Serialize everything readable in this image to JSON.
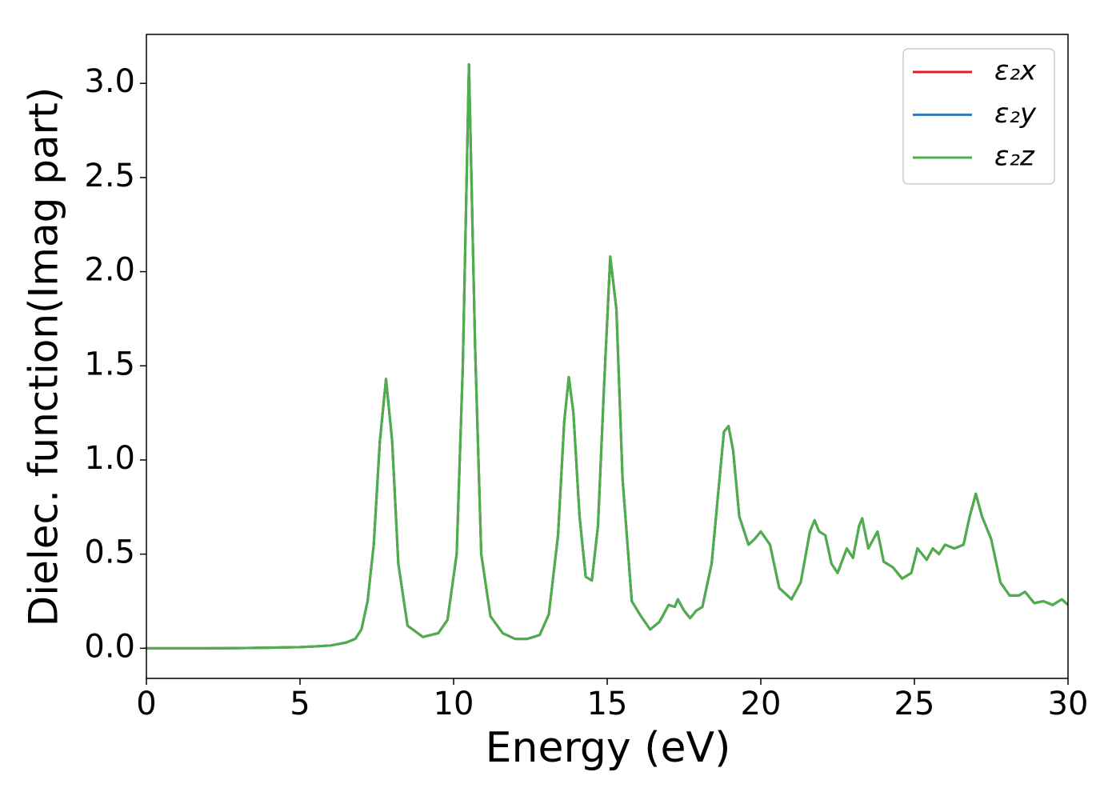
{
  "chart_data": {
    "type": "line",
    "xlabel": "Energy (eV)",
    "ylabel": "Dielec. function(Imag part)",
    "x": [
      0,
      1,
      2,
      3,
      4,
      5,
      5.5,
      6,
      6.5,
      6.8,
      7,
      7.2,
      7.4,
      7.6,
      7.8,
      8.0,
      8.2,
      8.5,
      9,
      9.5,
      9.8,
      10.1,
      10.3,
      10.5,
      10.7,
      10.9,
      11.2,
      11.6,
      12,
      12.4,
      12.8,
      13.1,
      13.4,
      13.6,
      13.75,
      13.9,
      14.1,
      14.3,
      14.5,
      14.7,
      14.9,
      15.1,
      15.3,
      15.5,
      15.8,
      16.1,
      16.4,
      16.7,
      17,
      17.2,
      17.3,
      17.5,
      17.7,
      17.9,
      18.1,
      18.4,
      18.6,
      18.8,
      18.95,
      19.1,
      19.3,
      19.6,
      19.8,
      20,
      20.3,
      20.6,
      21,
      21.3,
      21.6,
      21.75,
      21.9,
      22.1,
      22.3,
      22.5,
      22.8,
      23,
      23.2,
      23.3,
      23.5,
      23.8,
      24,
      24.3,
      24.6,
      24.9,
      25.1,
      25.4,
      25.6,
      25.8,
      26,
      26.3,
      26.6,
      26.8,
      27,
      27.2,
      27.5,
      27.8,
      28.1,
      28.4,
      28.6,
      28.9,
      29.2,
      29.5,
      29.8,
      30
    ],
    "series": [
      {
        "name": "ε₂x",
        "color": "#e41a1c",
        "values": [
          0,
          0,
          0,
          0.001,
          0.003,
          0.006,
          0.01,
          0.015,
          0.03,
          0.05,
          0.1,
          0.25,
          0.55,
          1.1,
          1.43,
          1.1,
          0.45,
          0.12,
          0.06,
          0.08,
          0.15,
          0.5,
          1.5,
          3.1,
          1.6,
          0.5,
          0.17,
          0.08,
          0.05,
          0.05,
          0.07,
          0.18,
          0.6,
          1.2,
          1.44,
          1.25,
          0.7,
          0.38,
          0.36,
          0.65,
          1.4,
          2.08,
          1.8,
          0.9,
          0.25,
          0.17,
          0.1,
          0.14,
          0.23,
          0.22,
          0.26,
          0.2,
          0.16,
          0.2,
          0.22,
          0.45,
          0.8,
          1.15,
          1.18,
          1.05,
          0.7,
          0.55,
          0.58,
          0.62,
          0.55,
          0.32,
          0.26,
          0.35,
          0.62,
          0.68,
          0.62,
          0.6,
          0.45,
          0.4,
          0.53,
          0.48,
          0.65,
          0.69,
          0.53,
          0.62,
          0.46,
          0.43,
          0.37,
          0.4,
          0.53,
          0.47,
          0.53,
          0.5,
          0.55,
          0.53,
          0.55,
          0.7,
          0.82,
          0.7,
          0.58,
          0.35,
          0.28,
          0.28,
          0.3,
          0.24,
          0.25,
          0.23,
          0.26,
          0.23
        ]
      },
      {
        "name": "ε₂y",
        "color": "#377eb8",
        "values": [
          0,
          0,
          0,
          0.001,
          0.003,
          0.006,
          0.01,
          0.015,
          0.03,
          0.05,
          0.1,
          0.25,
          0.55,
          1.1,
          1.43,
          1.1,
          0.45,
          0.12,
          0.06,
          0.08,
          0.15,
          0.5,
          1.5,
          3.1,
          1.6,
          0.5,
          0.17,
          0.08,
          0.05,
          0.05,
          0.07,
          0.18,
          0.6,
          1.2,
          1.44,
          1.25,
          0.7,
          0.38,
          0.36,
          0.65,
          1.4,
          2.08,
          1.8,
          0.9,
          0.25,
          0.17,
          0.1,
          0.14,
          0.23,
          0.22,
          0.26,
          0.2,
          0.16,
          0.2,
          0.22,
          0.45,
          0.8,
          1.15,
          1.18,
          1.05,
          0.7,
          0.55,
          0.58,
          0.62,
          0.55,
          0.32,
          0.26,
          0.35,
          0.62,
          0.68,
          0.62,
          0.6,
          0.45,
          0.4,
          0.53,
          0.48,
          0.65,
          0.69,
          0.53,
          0.62,
          0.46,
          0.43,
          0.37,
          0.4,
          0.53,
          0.47,
          0.53,
          0.5,
          0.55,
          0.53,
          0.55,
          0.7,
          0.82,
          0.7,
          0.58,
          0.35,
          0.28,
          0.28,
          0.3,
          0.24,
          0.25,
          0.23,
          0.26,
          0.23
        ]
      },
      {
        "name": "ε₂z",
        "color": "#4daf4a",
        "values": [
          0,
          0,
          0,
          0.001,
          0.003,
          0.006,
          0.01,
          0.015,
          0.03,
          0.05,
          0.1,
          0.25,
          0.55,
          1.1,
          1.43,
          1.1,
          0.45,
          0.12,
          0.06,
          0.08,
          0.15,
          0.5,
          1.5,
          3.1,
          1.6,
          0.5,
          0.17,
          0.08,
          0.05,
          0.05,
          0.07,
          0.18,
          0.6,
          1.2,
          1.44,
          1.25,
          0.7,
          0.38,
          0.36,
          0.65,
          1.4,
          2.08,
          1.8,
          0.9,
          0.25,
          0.17,
          0.1,
          0.14,
          0.23,
          0.22,
          0.26,
          0.2,
          0.16,
          0.2,
          0.22,
          0.45,
          0.8,
          1.15,
          1.18,
          1.05,
          0.7,
          0.55,
          0.58,
          0.62,
          0.55,
          0.32,
          0.26,
          0.35,
          0.62,
          0.68,
          0.62,
          0.6,
          0.45,
          0.4,
          0.53,
          0.48,
          0.65,
          0.69,
          0.53,
          0.62,
          0.46,
          0.43,
          0.37,
          0.4,
          0.53,
          0.47,
          0.53,
          0.5,
          0.55,
          0.53,
          0.55,
          0.7,
          0.82,
          0.7,
          0.58,
          0.35,
          0.28,
          0.28,
          0.3,
          0.24,
          0.25,
          0.23,
          0.26,
          0.23
        ]
      }
    ],
    "xlim": [
      0,
      30
    ],
    "xticks": [
      0,
      5,
      10,
      15,
      20,
      25,
      30
    ],
    "ylim": [
      -0.16,
      3.26
    ],
    "yticks": [
      {
        "value": 0,
        "label": "0.0"
      },
      {
        "value": 0.5,
        "label": "0.5"
      },
      {
        "value": 1,
        "label": "1.0"
      },
      {
        "value": 1.5,
        "label": "1.5"
      },
      {
        "value": 2,
        "label": "2.0"
      },
      {
        "value": 2.5,
        "label": "2.5"
      },
      {
        "value": 3,
        "label": "3.0"
      }
    ],
    "grid": false,
    "legend": "upper right"
  }
}
